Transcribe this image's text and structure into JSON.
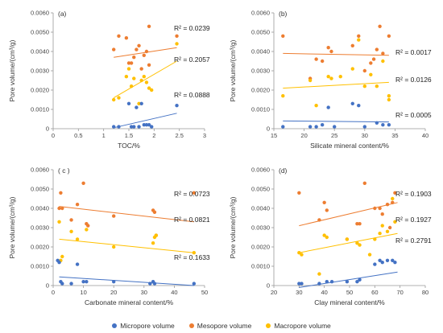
{
  "colors": {
    "micro": "#4472C4",
    "meso": "#ED7D31",
    "macro": "#FFC000"
  },
  "legend": [
    {
      "label": "Micropore volume",
      "color": "#4472C4"
    },
    {
      "label": "Mesopore volume",
      "color": "#ED7D31"
    },
    {
      "label": "Macropore volume",
      "color": "#FFC000"
    }
  ],
  "chart_data": [
    {
      "type": "scatter",
      "panel": "(a)",
      "xlabel": "TOC/%",
      "ylabel": "Pore volume/(cm³/g)",
      "xlim": [
        0,
        3
      ],
      "ylim": [
        0,
        0.006
      ],
      "xticks": [
        "0",
        "0.5",
        "1",
        "1.5",
        "2",
        "2.5",
        "3"
      ],
      "yticks": [
        "0",
        "0.0010",
        "0.0020",
        "0.0030",
        "0.0040",
        "0.0050",
        "0.0060"
      ],
      "series": [
        {
          "key": "meso",
          "r2": "R² = 0.0239",
          "fit": [
            [
              1.2,
              0.0037
            ],
            [
              2.45,
              0.0042
            ]
          ],
          "points": [
            [
              1.2,
              0.0041
            ],
            [
              1.3,
              0.0048
            ],
            [
              1.45,
              0.0047
            ],
            [
              1.5,
              0.0034
            ],
            [
              1.55,
              0.0034
            ],
            [
              1.6,
              0.0037
            ],
            [
              1.65,
              0.0041
            ],
            [
              1.7,
              0.0043
            ],
            [
              1.75,
              0.0031
            ],
            [
              1.8,
              0.0038
            ],
            [
              1.85,
              0.004
            ],
            [
              1.9,
              0.0053
            ],
            [
              1.9,
              0.0033
            ],
            [
              2.45,
              0.0048
            ]
          ]
        },
        {
          "key": "macro",
          "r2": "R² = 0.2057",
          "fit": [
            [
              1.2,
              0.0016
            ],
            [
              2.45,
              0.0035
            ]
          ],
          "points": [
            [
              1.2,
              0.0015
            ],
            [
              1.3,
              0.0016
            ],
            [
              1.45,
              0.0027
            ],
            [
              1.5,
              0.0031
            ],
            [
              1.55,
              0.0022
            ],
            [
              1.6,
              0.0026
            ],
            [
              1.7,
              0.0013
            ],
            [
              1.75,
              0.0025
            ],
            [
              1.8,
              0.0027
            ],
            [
              1.85,
              0.0024
            ],
            [
              1.9,
              0.0021
            ],
            [
              1.95,
              0.002
            ],
            [
              2.45,
              0.0044
            ]
          ]
        },
        {
          "key": "micro",
          "r2": "R² = 0.0888",
          "fit": [
            [
              1.2,
              5e-05
            ],
            [
              2.45,
              0.0008
            ]
          ],
          "points": [
            [
              1.2,
              0.0001
            ],
            [
              1.3,
              0.0001
            ],
            [
              1.5,
              0.0013
            ],
            [
              1.55,
              0.0001
            ],
            [
              1.6,
              0.0001
            ],
            [
              1.65,
              0.0011
            ],
            [
              1.7,
              0.0001
            ],
            [
              1.75,
              0.0013
            ],
            [
              1.8,
              0.0002
            ],
            [
              1.85,
              0.0002
            ],
            [
              1.9,
              0.0002
            ],
            [
              1.95,
              0.0001
            ],
            [
              2.45,
              0.0012
            ]
          ]
        }
      ]
    },
    {
      "type": "scatter",
      "panel": "(b)",
      "xlabel": "Silicate mineral content/%",
      "ylabel": "Pore volume/(cm³/g)",
      "xlim": [
        15,
        40
      ],
      "ylim": [
        0,
        0.006
      ],
      "xticks": [
        "15",
        "20",
        "25",
        "30",
        "35",
        "40"
      ],
      "yticks": [
        "0",
        "0.0010",
        "0.0020",
        "0.0030",
        "0.0040",
        "0.0050",
        "0.0060"
      ],
      "series": [
        {
          "key": "meso",
          "r2": "R² = 0.0017",
          "fit": [
            [
              16.5,
              0.0039
            ],
            [
              34,
              0.0038
            ]
          ],
          "points": [
            [
              16.5,
              0.0048
            ],
            [
              21,
              0.0026
            ],
            [
              22,
              0.0036
            ],
            [
              23,
              0.0035
            ],
            [
              24,
              0.0042
            ],
            [
              24.5,
              0.004
            ],
            [
              28,
              0.0043
            ],
            [
              29,
              0.0048
            ],
            [
              30,
              0.003
            ],
            [
              31,
              0.0034
            ],
            [
              31.5,
              0.0036
            ],
            [
              32,
              0.0041
            ],
            [
              32.5,
              0.0053
            ],
            [
              33,
              0.0039
            ],
            [
              34,
              0.0048
            ]
          ]
        },
        {
          "key": "macro",
          "r2": "R² = 0.0126",
          "fit": [
            [
              16.5,
              0.0021
            ],
            [
              34,
              0.0024
            ]
          ],
          "points": [
            [
              16.5,
              0.0017
            ],
            [
              21,
              0.0025
            ],
            [
              22,
              0.0012
            ],
            [
              24,
              0.0027
            ],
            [
              24.5,
              0.0026
            ],
            [
              26,
              0.0027
            ],
            [
              28,
              0.0031
            ],
            [
              29,
              0.0046
            ],
            [
              30,
              0.0022
            ],
            [
              31,
              0.0028
            ],
            [
              32,
              0.0022
            ],
            [
              33,
              0.0035
            ],
            [
              34,
              0.0017
            ],
            [
              34,
              0.0015
            ]
          ]
        },
        {
          "key": "micro",
          "r2": "R² = 0.0005",
          "fit": [
            [
              16.5,
              0.0004
            ],
            [
              34,
              0.00035
            ]
          ],
          "points": [
            [
              16.5,
              0.0001
            ],
            [
              21,
              0.0001
            ],
            [
              22,
              0.0001
            ],
            [
              23,
              0.0002
            ],
            [
              24,
              0.0011
            ],
            [
              25,
              0.0001
            ],
            [
              28,
              0.0013
            ],
            [
              29,
              0.0012
            ],
            [
              30,
              0.0001
            ],
            [
              32,
              0.0003
            ],
            [
              33,
              0.0002
            ],
            [
              34,
              0.0002
            ]
          ]
        }
      ]
    },
    {
      "type": "scatter",
      "panel": "( c )",
      "xlabel": "Carbonate mineral content/%",
      "ylabel": "Pore volume/(cm³/g)",
      "xlim": [
        0,
        50
      ],
      "ylim": [
        0,
        0.006
      ],
      "xticks": [
        "0",
        "10",
        "20",
        "30",
        "40",
        "50"
      ],
      "yticks": [
        "0",
        "0.0010",
        "0.0020",
        "0.0030",
        "0.0040",
        "0.0050",
        "0.0060"
      ],
      "series": [
        {
          "key": "meso",
          "r2": "R² = 0.0723",
          "fit": [
            [
              2,
              0.0041
            ],
            [
              46.5,
              0.0033
            ]
          ],
          "points": [
            [
              2,
              0.004
            ],
            [
              2.5,
              0.0048
            ],
            [
              3,
              0.004
            ],
            [
              6,
              0.0034
            ],
            [
              8,
              0.0042
            ],
            [
              10,
              0.0053
            ],
            [
              11,
              0.0032
            ],
            [
              11.5,
              0.0031
            ],
            [
              20,
              0.0036
            ],
            [
              33,
              0.0039
            ],
            [
              33.5,
              0.0038
            ],
            [
              34,
              0.0026
            ],
            [
              46.5,
              0.0048
            ]
          ]
        },
        {
          "key": "macro",
          "r2": "R² = 0.0821",
          "fit": [
            [
              2,
              0.0024
            ],
            [
              46.5,
              0.0017
            ]
          ],
          "points": [
            [
              2,
              0.0033
            ],
            [
              2.5,
              0.0013
            ],
            [
              3,
              0.0015
            ],
            [
              6,
              0.0028
            ],
            [
              8,
              0.0024
            ],
            [
              11,
              0.0029
            ],
            [
              20,
              0.002
            ],
            [
              33,
              0.0022
            ],
            [
              33.5,
              0.0025
            ],
            [
              34,
              0.0026
            ],
            [
              46.5,
              0.0017
            ]
          ]
        },
        {
          "key": "micro",
          "r2": "R² = 0.1633",
          "fit": [
            [
              2,
              0.00045
            ],
            [
              46.5,
              0.0
            ]
          ],
          "points": [
            [
              1.5,
              0.0013
            ],
            [
              2,
              0.0012
            ],
            [
              2.5,
              0.0002
            ],
            [
              3,
              0.0001
            ],
            [
              6,
              0.0001
            ],
            [
              8,
              0.0011
            ],
            [
              10,
              0.0002
            ],
            [
              11,
              0.0002
            ],
            [
              20,
              0.0002
            ],
            [
              32,
              0.0001
            ],
            [
              33,
              0.0002
            ],
            [
              33.5,
              0.0001
            ],
            [
              46.5,
              0.0001
            ]
          ]
        }
      ]
    },
    {
      "type": "scatter",
      "panel": "(d)",
      "xlabel": "Clay mineral content/%",
      "ylabel": "Pore volume/(cm³/g)",
      "xlim": [
        20,
        80
      ],
      "ylim": [
        0,
        0.006
      ],
      "xticks": [
        "20",
        "30",
        "40",
        "50",
        "60",
        "70",
        "80"
      ],
      "yticks": [
        "0",
        "0.0010",
        "0.0020",
        "0.0030",
        "0.0040",
        "0.0050",
        "0.0060"
      ],
      "series": [
        {
          "key": "meso",
          "r2": "R² = 0.1903",
          "fit": [
            [
              30,
              0.0031
            ],
            [
              69,
              0.0043
            ]
          ],
          "points": [
            [
              30,
              0.0048
            ],
            [
              38,
              0.0034
            ],
            [
              40,
              0.0043
            ],
            [
              41,
              0.0039
            ],
            [
              49,
              0.0024
            ],
            [
              53,
              0.0032
            ],
            [
              54,
              0.0032
            ],
            [
              56,
              0.0053
            ],
            [
              60,
              0.004
            ],
            [
              62,
              0.004
            ],
            [
              63,
              0.0037
            ],
            [
              65,
              0.0042
            ],
            [
              66,
              0.003
            ],
            [
              67,
              0.0043
            ],
            [
              68,
              0.0048
            ]
          ]
        },
        {
          "key": "macro",
          "r2": "R² = 0.1927",
          "fit": [
            [
              30,
              0.0017
            ],
            [
              69,
              0.0027
            ]
          ],
          "points": [
            [
              30,
              0.0017
            ],
            [
              31,
              0.0016
            ],
            [
              38,
              0.0006
            ],
            [
              40,
              0.0026
            ],
            [
              41,
              0.0025
            ],
            [
              49,
              0.0024
            ],
            [
              53,
              0.0022
            ],
            [
              54,
              0.0021
            ],
            [
              58,
              0.0016
            ],
            [
              60,
              0.0024
            ],
            [
              62,
              0.0027
            ],
            [
              63,
              0.0031
            ],
            [
              65,
              0.0028
            ],
            [
              67,
              0.0045
            ],
            [
              68,
              0.0033
            ]
          ]
        },
        {
          "key": "micro",
          "r2": "R² = 0.2791",
          "fit": [
            [
              30,
              -0.0001
            ],
            [
              69,
              0.0007
            ]
          ],
          "points": [
            [
              30,
              0.0001
            ],
            [
              31,
              0.0001
            ],
            [
              38,
              0.0001
            ],
            [
              41,
              0.0002
            ],
            [
              43,
              0.0002
            ],
            [
              49,
              0.0002
            ],
            [
              53,
              0.0002
            ],
            [
              54,
              0.0003
            ],
            [
              60,
              0.0011
            ],
            [
              62,
              0.0013
            ],
            [
              63,
              0.0012
            ],
            [
              65,
              0.0013
            ],
            [
              67,
              0.0013
            ],
            [
              68,
              0.0012
            ]
          ]
        }
      ]
    }
  ]
}
